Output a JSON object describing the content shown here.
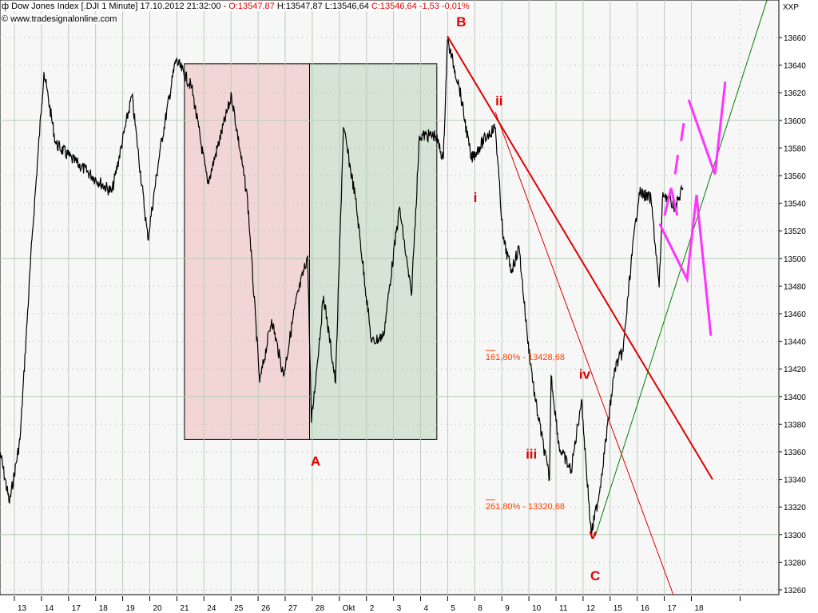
{
  "header": {
    "symbol_icon": "candlestick-icon",
    "title": "Dow Jones Index [.DJI  1 Minute] 17.10.2012 21:32:00 -",
    "open": "O:13547,87",
    "high": "H:13547,87",
    "low": "L:13546,64",
    "close": "C:13546,64 -1,53 -0,01%",
    "copyright": "© www.tradesignalonline.com",
    "scale_label": "XXP"
  },
  "colors": {
    "price": "#000000",
    "wave_label": "#e00000",
    "fib": "#ff4000",
    "trend_red": "#e00000",
    "trend_green": "#008000",
    "projection": "#ff33ff",
    "box_pink": "#f2d6d6",
    "box_green": "#d6e4d6",
    "grid": "#b8ccb8",
    "background": "#f7f7f7"
  },
  "chart_data": {
    "type": "line",
    "title": "Dow Jones Index [.DJI 1 Minute]",
    "x_tick_labels": [
      "13",
      "14",
      "17",
      "18",
      "19",
      "20",
      "21",
      "24",
      "25",
      "26",
      "27",
      "28",
      "Okt",
      "2",
      "3",
      "4",
      "5",
      "8",
      "9",
      "10",
      "11",
      "12",
      "15",
      "16",
      "17",
      "18"
    ],
    "y_ticks": [
      13260,
      13280,
      13300,
      13320,
      13340,
      13360,
      13380,
      13400,
      13420,
      13440,
      13460,
      13480,
      13500,
      13520,
      13540,
      13560,
      13580,
      13600,
      13620,
      13640,
      13660
    ],
    "ylim": [
      13256,
      13687
    ],
    "grid": true,
    "price_path": [
      [
        -0.53,
        13360
      ],
      [
        -0.18,
        13323
      ],
      [
        0.21,
        13369
      ],
      [
        0.65,
        13514
      ],
      [
        1.09,
        13635
      ],
      [
        1.53,
        13583
      ],
      [
        2.12,
        13572
      ],
      [
        3.6,
        13548
      ],
      [
        4.34,
        13618
      ],
      [
        4.93,
        13514
      ],
      [
        5.37,
        13577
      ],
      [
        5.96,
        13644
      ],
      [
        6.55,
        13624
      ],
      [
        7.14,
        13554
      ],
      [
        8.02,
        13618
      ],
      [
        8.61,
        13543
      ],
      [
        9.06,
        13410
      ],
      [
        9.5,
        13456
      ],
      [
        9.94,
        13415
      ],
      [
        10.38,
        13467
      ],
      [
        10.83,
        13502
      ],
      [
        10.97,
        13381
      ],
      [
        11.42,
        13473
      ],
      [
        11.86,
        13410
      ],
      [
        12.15,
        13595
      ],
      [
        12.6,
        13543
      ],
      [
        13.19,
        13439
      ],
      [
        13.63,
        13444
      ],
      [
        14.22,
        13537
      ],
      [
        14.66,
        13473
      ],
      [
        14.96,
        13589
      ],
      [
        15.55,
        13589
      ],
      [
        15.84,
        13572
      ],
      [
        15.99,
        13658
      ],
      [
        16.43,
        13624
      ],
      [
        16.87,
        13572
      ],
      [
        17.46,
        13589
      ],
      [
        17.76,
        13595
      ],
      [
        18.05,
        13514
      ],
      [
        18.35,
        13491
      ],
      [
        18.64,
        13508
      ],
      [
        18.94,
        13444
      ],
      [
        19.23,
        13398
      ],
      [
        19.76,
        13340
      ],
      [
        19.82,
        13415
      ],
      [
        20.12,
        13363
      ],
      [
        20.56,
        13346
      ],
      [
        20.94,
        13398
      ],
      [
        21.3,
        13300
      ],
      [
        21.59,
        13329
      ],
      [
        22.18,
        13421
      ],
      [
        22.48,
        13433
      ],
      [
        22.77,
        13496
      ],
      [
        23.07,
        13548
      ],
      [
        23.51,
        13543
      ],
      [
        23.81,
        13479
      ],
      [
        23.95,
        13548
      ],
      [
        24.4,
        13537
      ],
      [
        24.69,
        13551
      ]
    ],
    "boxes": [
      {
        "from": 6.28,
        "to": 10.9,
        "top": 13641,
        "bottom": 13369,
        "color": "#f2d6d6"
      },
      {
        "from": 10.9,
        "to": 15.6,
        "top": 13641,
        "bottom": 13369,
        "color": "#d6e4d6"
      }
    ],
    "trendlines": [
      {
        "from": [
          15.99,
          13661
        ],
        "to": [
          25.78,
          13340
        ],
        "color": "#e00000",
        "width": 2
      },
      {
        "from": [
          17.76,
          13606
        ],
        "to": [
          24.34,
          13256
        ],
        "color": "#e00000",
        "width": 1
      },
      {
        "from": [
          21.45,
          13299
        ],
        "to": [
          27.79,
          13687
        ],
        "color": "#008000",
        "width": 1
      }
    ],
    "projections": [
      [
        [
          23.83,
          13525
        ],
        [
          24.84,
          13485
        ],
        [
          25.19,
          13546
        ],
        [
          25.72,
          13444
        ]
      ],
      [
        [
          24.01,
          13531
        ],
        [
          24.25,
          13551
        ],
        [
          24.48,
          13531
        ]
      ],
      [
        [
          24.9,
          13615
        ],
        [
          25.87,
          13561
        ],
        [
          26.25,
          13628
        ]
      ]
    ],
    "projection_dashes": [
      [
        [
          24.4,
          13561
        ],
        [
          24.5,
          13575
        ]
      ],
      [
        [
          24.62,
          13585
        ],
        [
          24.72,
          13598
        ]
      ]
    ],
    "wave_labels": [
      {
        "text": "B",
        "at": [
          16.5,
          13668
        ]
      },
      {
        "text": "i",
        "at": [
          17.02,
          13541
        ]
      },
      {
        "text": "ii",
        "at": [
          17.9,
          13611
        ]
      },
      {
        "text": "iii",
        "at": [
          19.09,
          13355
        ]
      },
      {
        "text": "iv",
        "at": [
          21.06,
          13413
        ]
      },
      {
        "text": "v",
        "at": [
          21.36,
          13297
        ]
      },
      {
        "text": "C",
        "at": [
          21.45,
          13267
        ]
      },
      {
        "text": "A",
        "at": [
          11.12,
          13350
        ]
      }
    ],
    "fib_levels": [
      {
        "text": "161,80% - 13428,68",
        "price": 13428.68,
        "at": 17.4
      },
      {
        "text": "261,80% - 13320,68",
        "price": 13320.68,
        "at": 17.4
      }
    ]
  }
}
